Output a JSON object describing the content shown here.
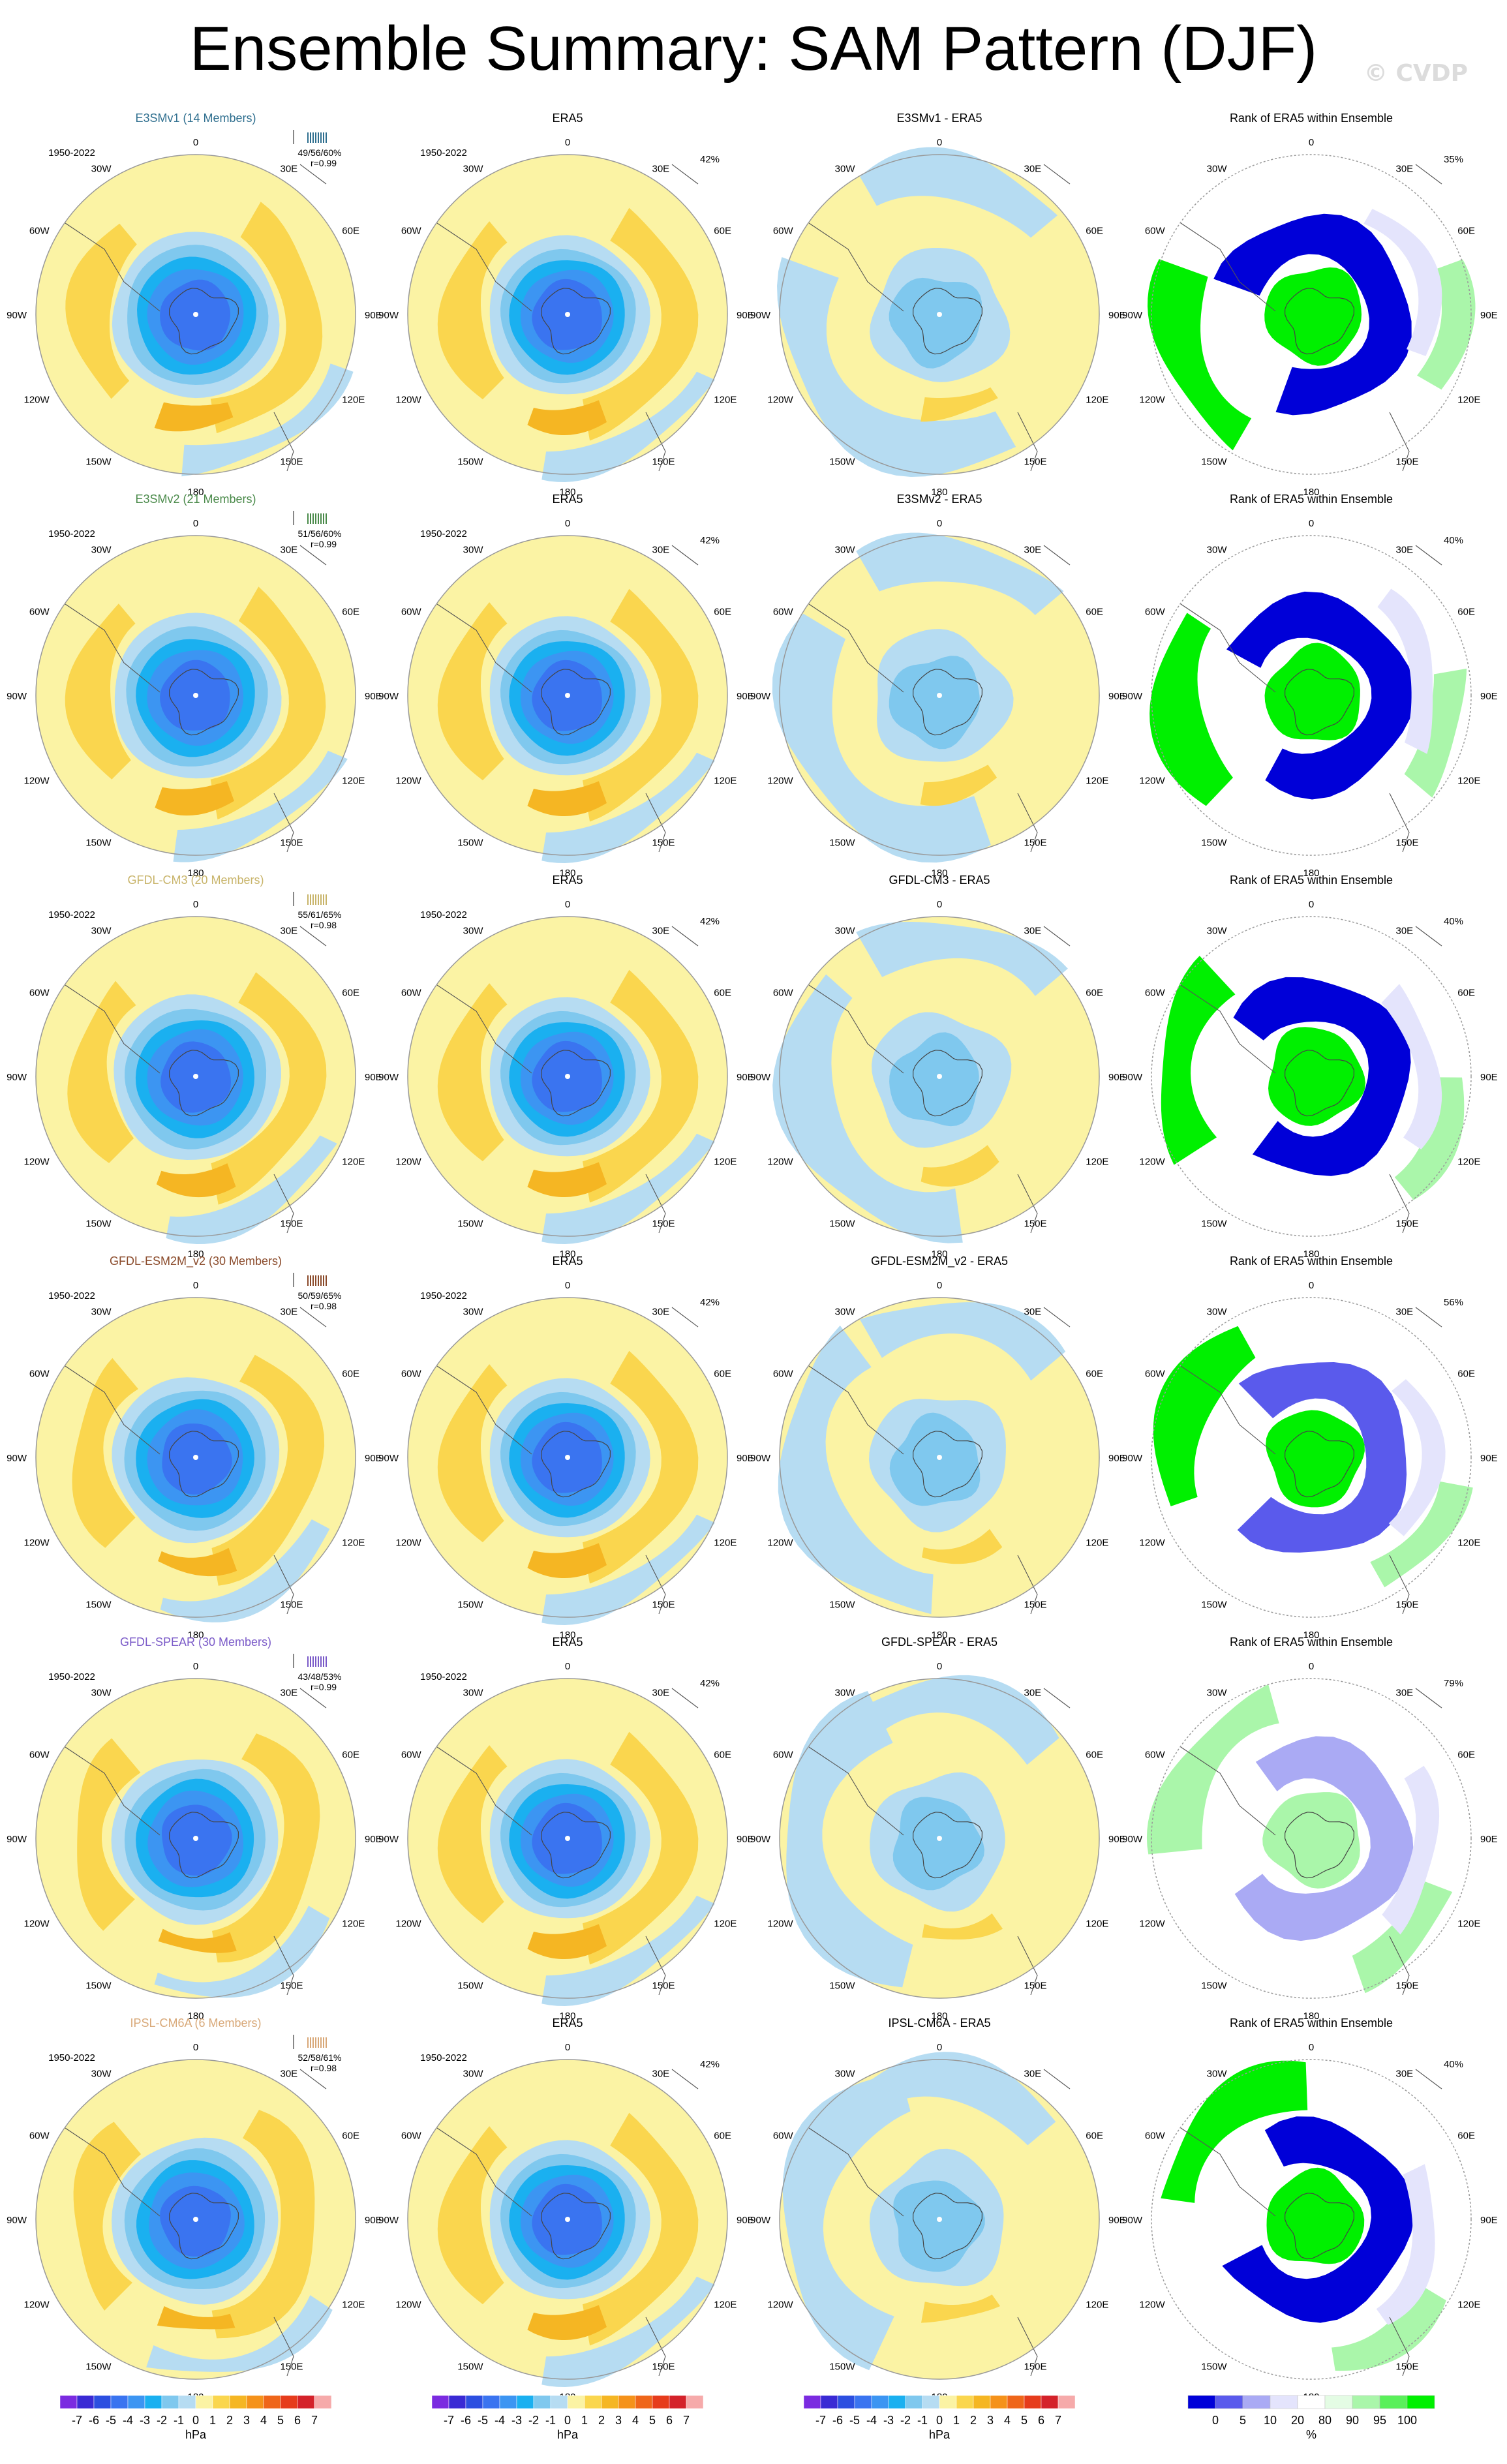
{
  "title": "Ensemble Summary: SAM Pattern (DJF)",
  "watermark": "© CVDP",
  "chart_data": {
    "type": "polar contour map panel",
    "period": "1950-2022",
    "lon_labels": [
      "0",
      "30E",
      "60E",
      "90E",
      "120E",
      "150E",
      "180",
      "150W",
      "120W",
      "90W",
      "60W",
      "30W"
    ],
    "rows": [
      {
        "model": "E3SMv1",
        "members": 14,
        "heading": "E3SMv1 (14 Members)",
        "color": "#2f6f8f",
        "model_stats": "49/56/60%",
        "r": "r=0.99",
        "era5_pct": "42%",
        "diff_title": "E3SMv1 - ERA5",
        "rank_pct": "35%",
        "rank_style": "strong"
      },
      {
        "model": "E3SMv2",
        "members": 21,
        "heading": "E3SMv2 (21 Members)",
        "color": "#4a8a4a",
        "model_stats": "51/56/60%",
        "r": "r=0.99",
        "era5_pct": "42%",
        "diff_title": "E3SMv2 - ERA5",
        "rank_pct": "40%",
        "rank_style": "strong"
      },
      {
        "model": "GFDL-CM3",
        "members": 20,
        "heading": "GFDL-CM3 (20 Members)",
        "color": "#c8b46a",
        "model_stats": "55/61/65%",
        "r": "r=0.98",
        "era5_pct": "42%",
        "diff_title": "GFDL-CM3 - ERA5",
        "rank_pct": "40%",
        "rank_style": "strong"
      },
      {
        "model": "GFDL-ESM2M_v2",
        "members": 30,
        "heading": "GFDL-ESM2M_v2 (30 Members)",
        "color": "#8a4a2a",
        "model_stats": "50/59/65%",
        "r": "r=0.98",
        "era5_pct": "42%",
        "diff_title": "GFDL-ESM2M_v2 - ERA5",
        "rank_pct": "56%",
        "rank_style": "medium"
      },
      {
        "model": "GFDL-SPEAR",
        "members": 30,
        "heading": "GFDL-SPEAR (30 Members)",
        "color": "#7a5ac8",
        "model_stats": "43/48/53%",
        "r": "r=0.99",
        "era5_pct": "42%",
        "diff_title": "GFDL-SPEAR - ERA5",
        "rank_pct": "79%",
        "rank_style": "weak"
      },
      {
        "model": "IPSL-CM6A",
        "members": 6,
        "heading": "IPSL-CM6A (6 Members)",
        "color": "#d8a878",
        "model_stats": "52/58/61%",
        "r": "r=0.98",
        "era5_pct": "42%",
        "diff_title": "IPSL-CM6A - ERA5",
        "rank_pct": "40%",
        "rank_style": "strong"
      }
    ],
    "era5_title": "ERA5",
    "rank_title": "Rank of ERA5 within Ensemble",
    "hpa_colorbar": {
      "labels": [
        "-7",
        "-6",
        "-5",
        "-4",
        "-3",
        "-2",
        "-1",
        "0",
        "1",
        "2",
        "3",
        "4",
        "5",
        "6",
        "7"
      ],
      "unit": "hPa",
      "colors": [
        "#7b2be0",
        "#3a2ad4",
        "#2c4fe0",
        "#3a74f0",
        "#3c95f2",
        "#1ab0f0",
        "#7fc8ee",
        "#b6dcf2",
        "#fbf3a4",
        "#fad64e",
        "#f5b623",
        "#f5921a",
        "#ef661a",
        "#e63c1c",
        "#d4222a",
        "#f6aaaa"
      ]
    },
    "rank_colorbar": {
      "labels": [
        "0",
        "5",
        "10",
        "20",
        "80",
        "90",
        "95",
        "100"
      ],
      "unit": "%",
      "colors": [
        "#0000d8",
        "#5a5aec",
        "#aaaaf4",
        "#e4e4fc",
        "#ffffff",
        "#e4fce4",
        "#aaf6aa",
        "#5af05a",
        "#00f000"
      ]
    }
  }
}
